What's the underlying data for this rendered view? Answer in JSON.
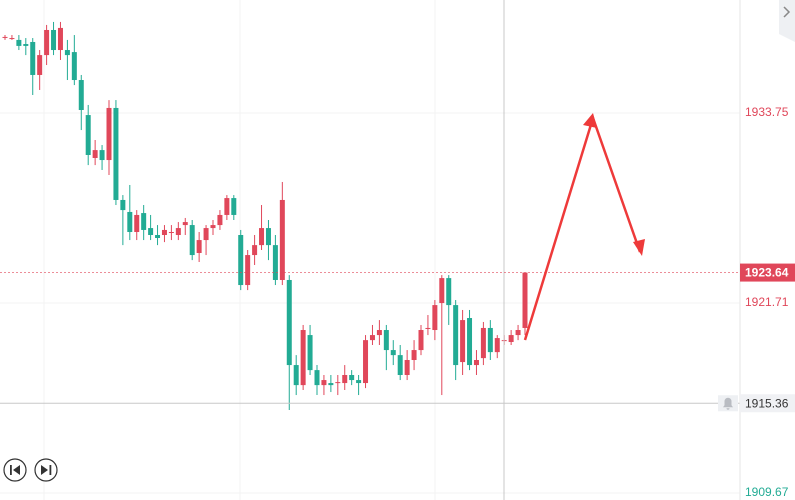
{
  "chart_data": {
    "type": "candlestick",
    "up_color": "#e0475a",
    "down_color": "#22ab94",
    "ylim": [
      1909.23,
      1940.91
    ],
    "yticks": [
      1933.75,
      1921.71,
      1909.67
    ],
    "ytick_colors": [
      "#e0475a",
      "#e0475a",
      "#22ab94"
    ],
    "current_price": 1923.64,
    "crosshair_price": 1915.36,
    "grid": true,
    "open": [
      1938.57,
      1938.5,
      1938.38,
      1938.12,
      1938.25,
      1936.16,
      1937.42,
      1939.01,
      1937.74,
      1937.74,
      1937.61,
      1935.84,
      1933.62,
      1930.9,
      1931.4,
      1930.77,
      1934.07,
      1928.24,
      1927.48,
      1926.21,
      1927.41,
      1926.46,
      1926.02,
      1926.02,
      1926.21,
      1926.02,
      1926.65,
      1926.65,
      1924.88,
      1925.7,
      1926.46,
      1926.65,
      1927.29,
      1928.36,
      1926.02,
      1922.85,
      1924.75,
      1925.38,
      1926.46,
      1925.38,
      1923.17,
      1923.17,
      1917.78,
      1916.51,
      1919.68,
      1917.46,
      1916.51,
      1916.64,
      1916.64,
      1916.64,
      1917.15,
      1916.83,
      1916.64,
      1919.36,
      1919.68,
      1920.0,
      1918.73,
      1918.41,
      1917.15,
      1918.1,
      1918.73,
      1920.13,
      1920.0,
      1921.71,
      1923.29,
      1921.58,
      1917.97,
      1920.76,
      1917.78,
      1918.22,
      1920.13,
      1918.6,
      1919.36,
      1919.24,
      1919.68,
      1920.13
    ],
    "high": [
      1938.69,
      1938.69,
      1938.69,
      1938.5,
      1938.5,
      1937.74,
      1939.33,
      1939.52,
      1939.52,
      1938.38,
      1938.69,
      1936.16,
      1934.26,
      1932.04,
      1931.72,
      1934.57,
      1934.57,
      1928.55,
      1929.19,
      1927.6,
      1927.92,
      1927.29,
      1926.65,
      1926.65,
      1926.65,
      1926.84,
      1927.1,
      1926.97,
      1926.21,
      1926.65,
      1926.97,
      1927.6,
      1928.55,
      1928.55,
      1926.34,
      1925.07,
      1926.02,
      1927.92,
      1926.97,
      1926.02,
      1929.38,
      1923.48,
      1918.41,
      1920.32,
      1920.32,
      1917.78,
      1917.15,
      1917.15,
      1917.15,
      1917.78,
      1917.46,
      1917.15,
      1919.68,
      1920.32,
      1920.63,
      1920.32,
      1919.36,
      1919.05,
      1918.73,
      1919.36,
      1920.32,
      1920.95,
      1921.9,
      1923.48,
      1923.48,
      1921.9,
      1921.27,
      1921.27,
      1918.73,
      1920.51,
      1920.63,
      1919.68,
      1919.68,
      1920.0,
      1920.32,
      1923.48
    ],
    "low": [
      1938.38,
      1938.38,
      1937.74,
      1937.42,
      1934.89,
      1935.21,
      1936.79,
      1937.42,
      1937.11,
      1935.84,
      1935.52,
      1932.67,
      1930.45,
      1930.45,
      1930.14,
      1929.82,
      1927.92,
      1925.38,
      1925.7,
      1925.7,
      1925.7,
      1925.7,
      1925.38,
      1925.57,
      1925.7,
      1925.7,
      1926.02,
      1924.43,
      1924.31,
      1924.75,
      1926.02,
      1926.34,
      1926.97,
      1926.97,
      1922.53,
      1922.53,
      1924.12,
      1925.07,
      1924.43,
      1922.85,
      1922.85,
      1914.93,
      1915.88,
      1916.2,
      1917.15,
      1915.88,
      1915.88,
      1916.07,
      1915.88,
      1916.2,
      1916.51,
      1915.88,
      1916.32,
      1919.05,
      1919.05,
      1917.46,
      1917.78,
      1916.83,
      1916.83,
      1917.46,
      1918.41,
      1919.68,
      1919.36,
      1915.88,
      1920.32,
      1916.83,
      1917.15,
      1917.46,
      1917.15,
      1917.78,
      1918.1,
      1918.22,
      1919.05,
      1919.05,
      1919.36,
      1919.68
    ],
    "close": [
      1938.57,
      1938.5,
      1938.0,
      1938.0,
      1936.16,
      1937.42,
      1939.01,
      1937.74,
      1939.14,
      1937.42,
      1935.84,
      1933.94,
      1931.09,
      1931.4,
      1930.77,
      1934.07,
      1928.24,
      1927.6,
      1926.21,
      1927.29,
      1926.34,
      1926.02,
      1925.83,
      1926.34,
      1926.21,
      1926.46,
      1926.84,
      1924.75,
      1925.7,
      1926.46,
      1926.65,
      1927.29,
      1928.36,
      1927.29,
      1922.85,
      1924.75,
      1925.38,
      1926.46,
      1925.38,
      1923.17,
      1928.24,
      1917.78,
      1916.51,
      1920.0,
      1917.46,
      1916.51,
      1916.83,
      1916.51,
      1916.7,
      1917.15,
      1916.83,
      1916.64,
      1919.36,
      1919.68,
      1920.0,
      1918.73,
      1918.41,
      1917.15,
      1918.1,
      1918.73,
      1920.0,
      1920.13,
      1921.58,
      1923.29,
      1921.58,
      1917.78,
      1920.63,
      1917.78,
      1918.1,
      1920.13,
      1918.6,
      1919.49,
      1919.36,
      1919.68,
      1920.0,
      1923.64
    ]
  }
}
